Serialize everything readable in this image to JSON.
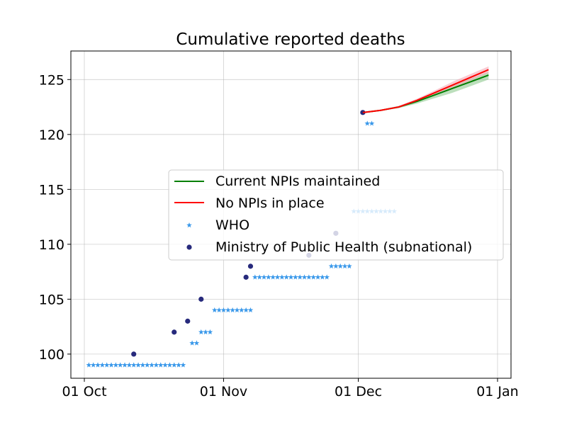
{
  "chart_data": {
    "type": "line",
    "title": "Cumulative reported deaths",
    "xlabel": "",
    "ylabel": "",
    "x_ticks": [
      "01 Oct",
      "01 Nov",
      "01 Dec",
      "01 Jan"
    ],
    "y_ticks": [
      100,
      105,
      110,
      115,
      120,
      125
    ],
    "xlim": [
      "2020-09-28",
      "2021-01-04"
    ],
    "ylim": [
      97.8,
      127.6
    ],
    "grid": true,
    "legend_placement": "center-right",
    "series": [
      {
        "name": "Current NPIs maintained",
        "kind": "line",
        "color": "#007f00",
        "band_color": "#8fc98f",
        "x": [
          "2020-12-02",
          "2020-12-06",
          "2020-12-10",
          "2020-12-14",
          "2020-12-18",
          "2020-12-22",
          "2020-12-26",
          "2020-12-30"
        ],
        "y": [
          122.0,
          122.2,
          122.5,
          123.0,
          123.6,
          124.2,
          124.8,
          125.4
        ],
        "lower": [
          122.0,
          122.15,
          122.4,
          122.8,
          123.3,
          123.8,
          124.4,
          125.0
        ],
        "upper": [
          122.0,
          122.25,
          122.6,
          123.15,
          123.8,
          124.5,
          125.1,
          125.7
        ]
      },
      {
        "name": "No NPIs in place",
        "kind": "line",
        "color": "#ff0000",
        "band_color": "#f5a8b6",
        "x": [
          "2020-12-02",
          "2020-12-06",
          "2020-12-10",
          "2020-12-14",
          "2020-12-18",
          "2020-12-22",
          "2020-12-26",
          "2020-12-30"
        ],
        "y": [
          122.0,
          122.2,
          122.5,
          123.1,
          123.8,
          124.5,
          125.2,
          125.9
        ],
        "lower": [
          122.0,
          122.15,
          122.45,
          122.95,
          123.6,
          124.2,
          124.9,
          125.6
        ],
        "upper": [
          122.0,
          122.25,
          122.6,
          123.25,
          124.0,
          124.8,
          125.5,
          126.2
        ]
      },
      {
        "name": "WHO",
        "kind": "scatter",
        "marker": "star",
        "color": "#3b99ea",
        "points": [
          [
            "2020-10-02",
            99
          ],
          [
            "2020-10-03",
            99
          ],
          [
            "2020-10-04",
            99
          ],
          [
            "2020-10-05",
            99
          ],
          [
            "2020-10-06",
            99
          ],
          [
            "2020-10-07",
            99
          ],
          [
            "2020-10-08",
            99
          ],
          [
            "2020-10-09",
            99
          ],
          [
            "2020-10-10",
            99
          ],
          [
            "2020-10-11",
            99
          ],
          [
            "2020-10-12",
            99
          ],
          [
            "2020-10-13",
            99
          ],
          [
            "2020-10-14",
            99
          ],
          [
            "2020-10-15",
            99
          ],
          [
            "2020-10-16",
            99
          ],
          [
            "2020-10-17",
            99
          ],
          [
            "2020-10-18",
            99
          ],
          [
            "2020-10-19",
            99
          ],
          [
            "2020-10-20",
            99
          ],
          [
            "2020-10-21",
            99
          ],
          [
            "2020-10-22",
            99
          ],
          [
            "2020-10-23",
            99
          ],
          [
            "2020-10-25",
            101
          ],
          [
            "2020-10-26",
            101
          ],
          [
            "2020-10-27",
            102
          ],
          [
            "2020-10-28",
            102
          ],
          [
            "2020-10-29",
            102
          ],
          [
            "2020-10-30",
            104
          ],
          [
            "2020-10-31",
            104
          ],
          [
            "2020-11-01",
            104
          ],
          [
            "2020-11-02",
            104
          ],
          [
            "2020-11-03",
            104
          ],
          [
            "2020-11-04",
            104
          ],
          [
            "2020-11-05",
            104
          ],
          [
            "2020-11-06",
            104
          ],
          [
            "2020-11-07",
            104
          ],
          [
            "2020-11-08",
            107
          ],
          [
            "2020-11-09",
            107
          ],
          [
            "2020-11-10",
            107
          ],
          [
            "2020-11-11",
            107
          ],
          [
            "2020-11-12",
            107
          ],
          [
            "2020-11-13",
            107
          ],
          [
            "2020-11-14",
            107
          ],
          [
            "2020-11-15",
            107
          ],
          [
            "2020-11-16",
            107
          ],
          [
            "2020-11-17",
            107
          ],
          [
            "2020-11-18",
            107
          ],
          [
            "2020-11-19",
            107
          ],
          [
            "2020-11-20",
            107
          ],
          [
            "2020-11-21",
            107
          ],
          [
            "2020-11-22",
            107
          ],
          [
            "2020-11-23",
            107
          ],
          [
            "2020-11-24",
            107
          ],
          [
            "2020-11-25",
            108
          ],
          [
            "2020-11-26",
            108
          ],
          [
            "2020-11-27",
            108
          ],
          [
            "2020-11-28",
            108
          ],
          [
            "2020-11-29",
            108
          ],
          [
            "2020-11-30",
            113
          ],
          [
            "2020-12-01",
            113
          ],
          [
            "2020-12-02",
            113
          ],
          [
            "2020-12-03",
            113
          ],
          [
            "2020-12-04",
            113
          ],
          [
            "2020-12-05",
            113
          ],
          [
            "2020-12-06",
            113
          ],
          [
            "2020-12-07",
            113
          ],
          [
            "2020-12-08",
            113
          ],
          [
            "2020-12-09",
            113
          ],
          [
            "2020-12-03",
            121
          ],
          [
            "2020-12-04",
            121
          ]
        ]
      },
      {
        "name": "Ministry of Public Health (subnational)",
        "kind": "scatter",
        "marker": "circle",
        "color": "#272a7c",
        "points": [
          [
            "2020-10-12",
            100
          ],
          [
            "2020-10-21",
            102
          ],
          [
            "2020-10-24",
            103
          ],
          [
            "2020-10-27",
            105
          ],
          [
            "2020-11-06",
            107
          ],
          [
            "2020-11-07",
            108
          ],
          [
            "2020-11-20",
            109
          ],
          [
            "2020-11-26",
            111
          ],
          [
            "2020-12-02",
            122
          ]
        ]
      }
    ]
  }
}
